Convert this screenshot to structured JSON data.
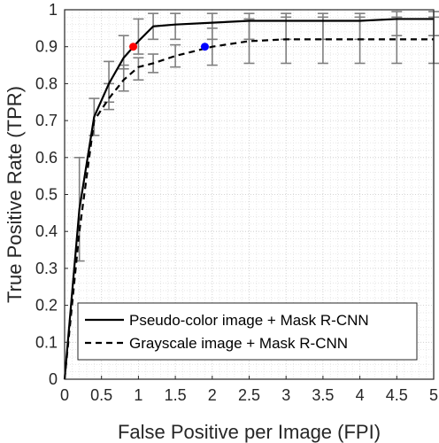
{
  "chart_data": {
    "type": "line",
    "title": "",
    "xlabel": "False Positive per Image (FPI)",
    "ylabel": "True Positive Rate (TPR)",
    "xlim": [
      0,
      5
    ],
    "ylim": [
      0,
      1
    ],
    "xticks": [
      "0",
      "0.5",
      "1",
      "1.5",
      "2",
      "2.5",
      "3",
      "3.5",
      "4",
      "4.5",
      "5"
    ],
    "yticks": [
      "0",
      "0.1",
      "0.2",
      "0.3",
      "0.4",
      "0.5",
      "0.6",
      "0.7",
      "0.8",
      "0.9",
      "1"
    ],
    "grid": "minor dotted",
    "legend_position": "bottom-right",
    "series": [
      {
        "name": "Pseudo-color image + Mask R-CNN",
        "style": "solid",
        "color": "#000000",
        "points": [
          [
            0,
            0
          ],
          [
            0.2,
            0.46
          ],
          [
            0.4,
            0.71
          ],
          [
            0.6,
            0.8
          ],
          [
            0.8,
            0.87
          ],
          [
            1.0,
            0.915
          ],
          [
            1.2,
            0.955
          ],
          [
            1.5,
            0.96
          ],
          [
            2.0,
            0.965
          ],
          [
            2.5,
            0.97
          ],
          [
            3.0,
            0.97
          ],
          [
            3.5,
            0.97
          ],
          [
            4.0,
            0.97
          ],
          [
            4.5,
            0.975
          ],
          [
            5.0,
            0.975
          ]
        ],
        "error_bars": [
          {
            "x": 0.2,
            "low": 0.32,
            "high": 0.6
          },
          {
            "x": 0.4,
            "low": 0.66,
            "high": 0.76
          },
          {
            "x": 0.6,
            "low": 0.75,
            "high": 0.86
          },
          {
            "x": 0.8,
            "low": 0.84,
            "high": 0.93
          },
          {
            "x": 1.0,
            "low": 0.88,
            "high": 0.975
          },
          {
            "x": 1.2,
            "low": 0.92,
            "high": 0.99
          },
          {
            "x": 1.5,
            "low": 0.92,
            "high": 0.99
          },
          {
            "x": 2.0,
            "low": 0.92,
            "high": 0.99
          },
          {
            "x": 2.5,
            "low": 0.92,
            "high": 0.99
          },
          {
            "x": 3.0,
            "low": 0.92,
            "high": 0.99
          },
          {
            "x": 3.5,
            "low": 0.92,
            "high": 0.99
          },
          {
            "x": 4.0,
            "low": 0.92,
            "high": 0.99
          },
          {
            "x": 4.5,
            "low": 0.93,
            "high": 0.995
          },
          {
            "x": 5.0,
            "low": 0.93,
            "high": 0.995
          }
        ]
      },
      {
        "name": "Grayscale image + Mask R-CNN",
        "style": "dashed",
        "color": "#000000",
        "points": [
          [
            0,
            0
          ],
          [
            0.2,
            0.4
          ],
          [
            0.4,
            0.7
          ],
          [
            0.6,
            0.76
          ],
          [
            0.8,
            0.81
          ],
          [
            1.0,
            0.845
          ],
          [
            1.2,
            0.855
          ],
          [
            1.5,
            0.875
          ],
          [
            2.0,
            0.9
          ],
          [
            2.5,
            0.915
          ],
          [
            3.0,
            0.92
          ],
          [
            3.5,
            0.92
          ],
          [
            4.0,
            0.92
          ],
          [
            4.5,
            0.92
          ],
          [
            5.0,
            0.92
          ]
        ],
        "error_bars": [
          {
            "x": 0.6,
            "low": 0.73,
            "high": 0.8
          },
          {
            "x": 0.8,
            "low": 0.78,
            "high": 0.85
          },
          {
            "x": 1.0,
            "low": 0.81,
            "high": 0.87
          },
          {
            "x": 1.2,
            "low": 0.83,
            "high": 0.88
          },
          {
            "x": 1.5,
            "low": 0.845,
            "high": 0.905
          },
          {
            "x": 2.0,
            "low": 0.85,
            "high": 0.95
          },
          {
            "x": 2.5,
            "low": 0.855,
            "high": 0.975
          },
          {
            "x": 3.0,
            "low": 0.855,
            "high": 0.98
          },
          {
            "x": 3.5,
            "low": 0.855,
            "high": 0.98
          },
          {
            "x": 4.0,
            "low": 0.855,
            "high": 0.98
          },
          {
            "x": 4.5,
            "low": 0.855,
            "high": 0.98
          },
          {
            "x": 5.0,
            "low": 0.855,
            "high": 0.98
          }
        ]
      }
    ],
    "markers": [
      {
        "x": 0.93,
        "y": 0.9,
        "color": "#ff0000"
      },
      {
        "x": 1.9,
        "y": 0.9,
        "color": "#0000ff"
      }
    ]
  }
}
